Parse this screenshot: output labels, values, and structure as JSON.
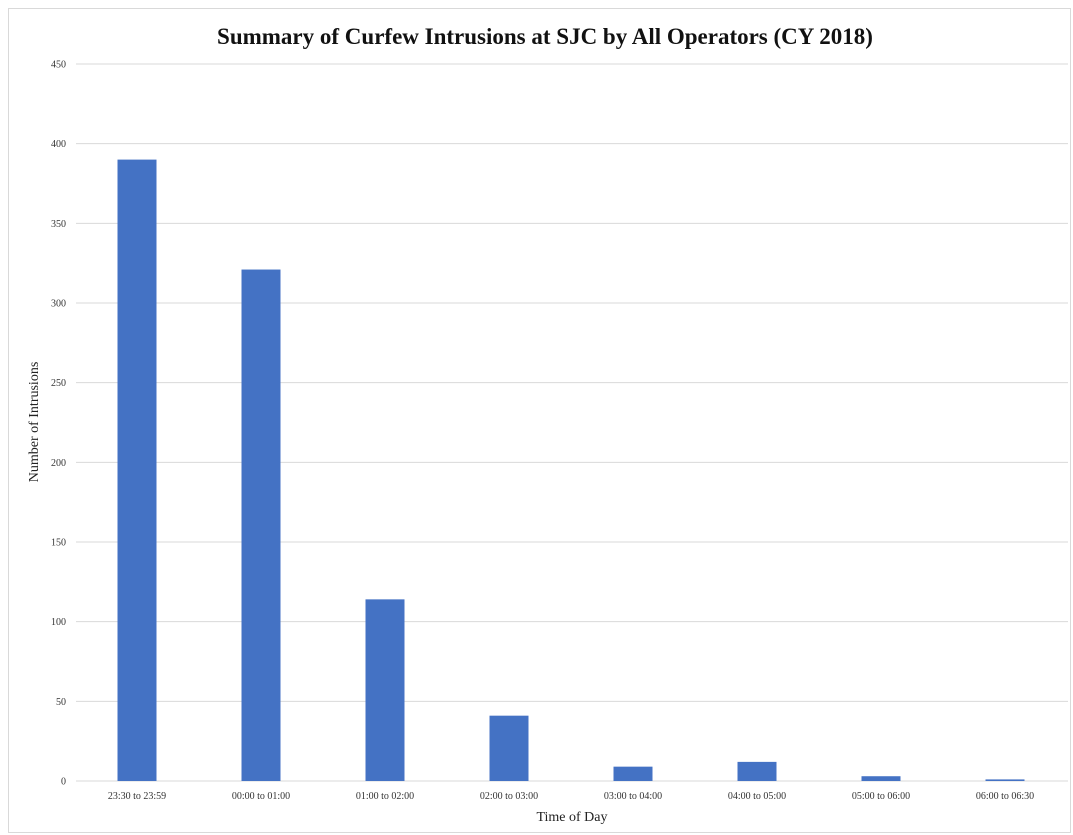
{
  "chart_data": {
    "type": "bar",
    "title": "Summary of Curfew Intrusions at SJC by All Operators (CY 2018)",
    "xlabel": "Time of Day",
    "ylabel": "Number of Intrusions",
    "categories": [
      "23:30 to 23:59",
      "00:00 to 01:00",
      "01:00 to 02:00",
      "02:00 to 03:00",
      "03:00 to 04:00",
      "04:00 to 05:00",
      "05:00 to 06:00",
      "06:00 to 06:30"
    ],
    "values": [
      390,
      321,
      114,
      41,
      9,
      12,
      3,
      1
    ],
    "ylim": [
      0,
      450
    ],
    "yticks": [
      0,
      50,
      100,
      150,
      200,
      250,
      300,
      350,
      400,
      450
    ],
    "grid": true,
    "legend": "none",
    "bar_color": "#4472c4"
  }
}
